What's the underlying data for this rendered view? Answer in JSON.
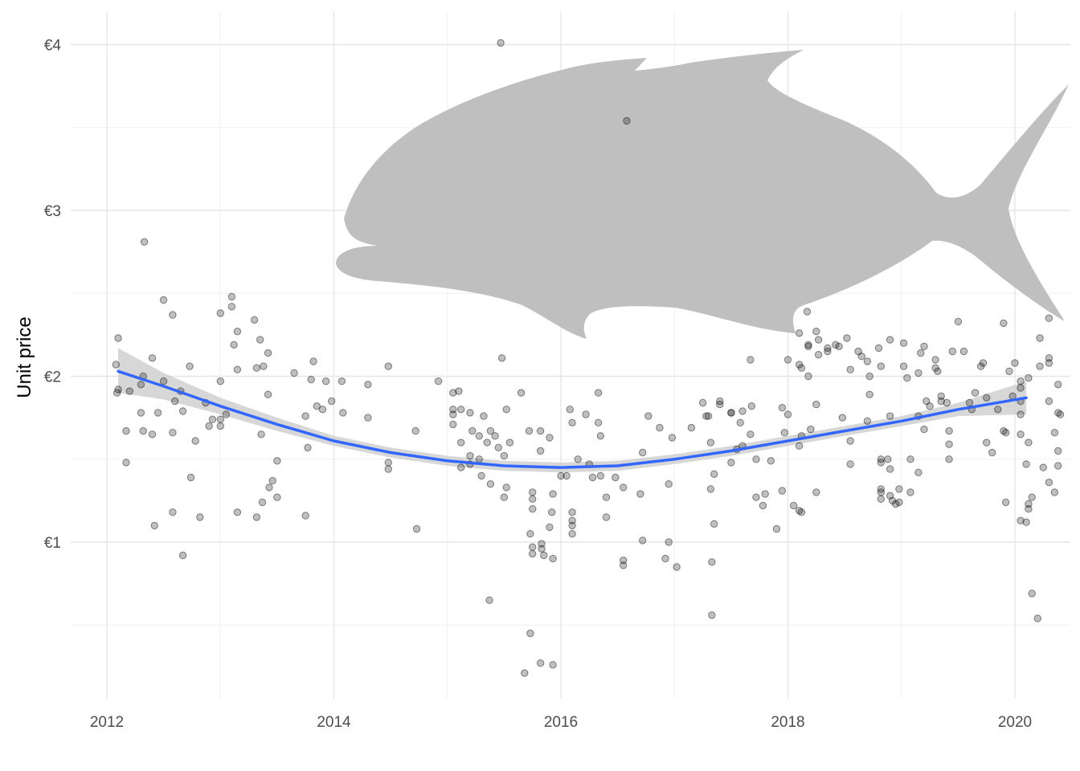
{
  "chart_data": {
    "type": "scatter",
    "ylabel": "Unit price",
    "y_tick_labels": [
      "€1",
      "€2",
      "€3",
      "€4"
    ],
    "y_ticks": [
      1,
      2,
      3,
      4
    ],
    "y_minor_ticks": [
      0.5,
      1.5,
      2.5,
      3.5
    ],
    "ylim": [
      0.0,
      4.2
    ],
    "x_tick_labels": [
      "2012",
      "2014",
      "2016",
      "2018",
      "2020"
    ],
    "x_ticks": [
      2012,
      2014,
      2016,
      2018,
      2020
    ],
    "x_minor_ticks": [
      2013,
      2015,
      2017,
      2019
    ],
    "xlim": [
      2011.7,
      2020.5
    ],
    "grid": true,
    "colors": {
      "points": "#000000",
      "smooth_line": "#3366ff",
      "confidence_band": "#d0d0d0",
      "fish_silhouette": "#bfbfbf",
      "grid": "#e6e6e6"
    },
    "silhouette": "fish",
    "smooth": {
      "x": [
        2012.1,
        2012.5,
        2013.0,
        2013.5,
        2014.0,
        2014.5,
        2015.0,
        2015.5,
        2016.0,
        2016.5,
        2017.0,
        2017.5,
        2018.0,
        2018.5,
        2019.0,
        2019.5,
        2020.1
      ],
      "y": [
        2.03,
        1.94,
        1.82,
        1.71,
        1.61,
        1.54,
        1.49,
        1.46,
        1.45,
        1.46,
        1.5,
        1.55,
        1.61,
        1.67,
        1.73,
        1.8,
        1.87
      ],
      "lower": [
        1.9,
        1.86,
        1.77,
        1.67,
        1.58,
        1.51,
        1.46,
        1.43,
        1.42,
        1.43,
        1.47,
        1.52,
        1.58,
        1.64,
        1.7,
        1.76,
        1.77
      ],
      "upper": [
        2.17,
        2.02,
        1.87,
        1.75,
        1.64,
        1.57,
        1.52,
        1.49,
        1.48,
        1.49,
        1.53,
        1.58,
        1.64,
        1.7,
        1.76,
        1.84,
        1.97
      ]
    },
    "points": [
      [
        2012.1,
        2.23
      ],
      [
        2012.08,
        2.07
      ],
      [
        2012.1,
        1.92
      ],
      [
        2012.09,
        1.9
      ],
      [
        2012.3,
        1.95
      ],
      [
        2012.33,
        2.81
      ],
      [
        2012.32,
        2.0
      ],
      [
        2012.4,
        2.11
      ],
      [
        2012.45,
        1.78
      ],
      [
        2012.5,
        1.97
      ],
      [
        2012.2,
        1.91
      ],
      [
        2012.3,
        1.78
      ],
      [
        2012.17,
        1.67
      ],
      [
        2012.32,
        1.67
      ],
      [
        2012.4,
        1.65
      ],
      [
        2012.17,
        1.48
      ],
      [
        2012.42,
        1.1
      ],
      [
        2012.5,
        2.46
      ],
      [
        2012.58,
        2.37
      ],
      [
        2012.65,
        1.91
      ],
      [
        2012.73,
        2.06
      ],
      [
        2012.6,
        1.85
      ],
      [
        2012.67,
        1.79
      ],
      [
        2012.58,
        1.66
      ],
      [
        2012.58,
        1.18
      ],
      [
        2012.67,
        0.92
      ],
      [
        2012.78,
        1.61
      ],
      [
        2012.87,
        1.84
      ],
      [
        2012.93,
        1.74
      ],
      [
        2012.9,
        1.7
      ],
      [
        2012.74,
        1.39
      ],
      [
        2012.82,
        1.15
      ],
      [
        2013.1,
        2.48
      ],
      [
        2013.1,
        2.42
      ],
      [
        2013.0,
        2.38
      ],
      [
        2013.15,
        2.27
      ],
      [
        2013.12,
        2.19
      ],
      [
        2013.15,
        2.04
      ],
      [
        2013.0,
        1.97
      ],
      [
        2013.05,
        1.77
      ],
      [
        2013.0,
        1.74
      ],
      [
        2013.0,
        1.7
      ],
      [
        2013.15,
        1.18
      ],
      [
        2013.3,
        2.34
      ],
      [
        2013.35,
        2.22
      ],
      [
        2013.42,
        2.14
      ],
      [
        2013.38,
        2.06
      ],
      [
        2013.32,
        2.05
      ],
      [
        2013.42,
        1.89
      ],
      [
        2013.36,
        1.65
      ],
      [
        2013.5,
        1.49
      ],
      [
        2013.46,
        1.37
      ],
      [
        2013.43,
        1.33
      ],
      [
        2013.5,
        1.27
      ],
      [
        2013.37,
        1.24
      ],
      [
        2013.32,
        1.15
      ],
      [
        2013.65,
        2.02
      ],
      [
        2013.75,
        1.76
      ],
      [
        2013.77,
        1.57
      ],
      [
        2013.75,
        1.16
      ],
      [
        2013.82,
        2.09
      ],
      [
        2013.8,
        1.98
      ],
      [
        2013.93,
        1.97
      ],
      [
        2013.85,
        1.82
      ],
      [
        2013.9,
        1.8
      ],
      [
        2013.98,
        1.85
      ],
      [
        2014.07,
        1.97
      ],
      [
        2014.08,
        1.78
      ],
      [
        2014.3,
        1.95
      ],
      [
        2014.3,
        1.75
      ],
      [
        2014.48,
        2.06
      ],
      [
        2014.48,
        1.48
      ],
      [
        2014.48,
        1.44
      ],
      [
        2014.72,
        1.67
      ],
      [
        2014.73,
        1.08
      ],
      [
        2014.92,
        1.97
      ],
      [
        2015.05,
        1.9
      ],
      [
        2015.05,
        1.8
      ],
      [
        2015.05,
        1.77
      ],
      [
        2015.05,
        1.71
      ],
      [
        2015.1,
        1.91
      ],
      [
        2015.12,
        1.8
      ],
      [
        2015.12,
        1.6
      ],
      [
        2015.12,
        1.45
      ],
      [
        2015.2,
        1.78
      ],
      [
        2015.22,
        1.67
      ],
      [
        2015.2,
        1.52
      ],
      [
        2015.2,
        1.47
      ],
      [
        2015.28,
        1.64
      ],
      [
        2015.28,
        1.5
      ],
      [
        2015.3,
        1.4
      ],
      [
        2015.32,
        1.76
      ],
      [
        2015.38,
        1.67
      ],
      [
        2015.35,
        1.6
      ],
      [
        2015.38,
        1.35
      ],
      [
        2015.37,
        0.65
      ],
      [
        2015.42,
        1.64
      ],
      [
        2015.45,
        1.57
      ],
      [
        2015.5,
        1.52
      ],
      [
        2015.52,
        1.8
      ],
      [
        2015.55,
        1.6
      ],
      [
        2015.52,
        1.33
      ],
      [
        2015.5,
        1.27
      ],
      [
        2015.48,
        2.11
      ],
      [
        2015.47,
        4.01
      ],
      [
        2015.65,
        1.9
      ],
      [
        2015.68,
        0.21
      ],
      [
        2015.72,
        1.67
      ],
      [
        2015.75,
        1.3
      ],
      [
        2015.75,
        1.26
      ],
      [
        2015.75,
        1.2
      ],
      [
        2015.73,
        1.05
      ],
      [
        2015.75,
        0.97
      ],
      [
        2015.75,
        0.93
      ],
      [
        2015.73,
        0.45
      ],
      [
        2015.82,
        1.67
      ],
      [
        2015.82,
        1.55
      ],
      [
        2015.83,
        0.99
      ],
      [
        2015.83,
        0.96
      ],
      [
        2015.85,
        0.92
      ],
      [
        2015.82,
        0.27
      ],
      [
        2015.9,
        1.63
      ],
      [
        2015.93,
        1.29
      ],
      [
        2015.92,
        1.18
      ],
      [
        2015.9,
        1.09
      ],
      [
        2015.93,
        0.9
      ],
      [
        2015.93,
        0.26
      ],
      [
        2016.0,
        1.4
      ],
      [
        2016.08,
        1.8
      ],
      [
        2016.1,
        1.72
      ],
      [
        2016.05,
        1.4
      ],
      [
        2016.1,
        1.18
      ],
      [
        2016.1,
        1.13
      ],
      [
        2016.1,
        1.1
      ],
      [
        2016.1,
        1.05
      ],
      [
        2016.15,
        1.5
      ],
      [
        2016.22,
        1.77
      ],
      [
        2016.25,
        1.47
      ],
      [
        2016.28,
        1.39
      ],
      [
        2016.33,
        1.72
      ],
      [
        2016.35,
        1.64
      ],
      [
        2016.33,
        1.9
      ],
      [
        2016.35,
        1.4
      ],
      [
        2016.4,
        1.27
      ],
      [
        2016.4,
        1.15
      ],
      [
        2016.48,
        1.39
      ],
      [
        2016.55,
        1.33
      ],
      [
        2016.55,
        0.86
      ],
      [
        2016.55,
        0.89
      ],
      [
        2016.72,
        1.54
      ],
      [
        2016.7,
        1.29
      ],
      [
        2016.72,
        1.01
      ],
      [
        2016.77,
        1.76
      ],
      [
        2016.87,
        1.69
      ],
      [
        2016.92,
        0.9
      ],
      [
        2016.98,
        1.63
      ],
      [
        2016.95,
        1.35
      ],
      [
        2016.95,
        1.0
      ],
      [
        2017.02,
        0.85
      ],
      [
        2017.15,
        1.69
      ],
      [
        2017.25,
        1.84
      ],
      [
        2017.28,
        1.76
      ],
      [
        2017.3,
        1.76
      ],
      [
        2017.32,
        1.6
      ],
      [
        2017.35,
        1.41
      ],
      [
        2017.32,
        1.32
      ],
      [
        2017.33,
        0.88
      ],
      [
        2017.4,
        1.85
      ],
      [
        2017.4,
        1.83
      ],
      [
        2017.35,
        1.11
      ],
      [
        2017.33,
        0.56
      ],
      [
        2017.5,
        1.78
      ],
      [
        2017.5,
        1.78
      ],
      [
        2017.58,
        1.72
      ],
      [
        2017.6,
        1.79
      ],
      [
        2017.6,
        1.58
      ],
      [
        2017.55,
        1.56
      ],
      [
        2017.5,
        1.48
      ],
      [
        2017.67,
        2.1
      ],
      [
        2017.67,
        1.65
      ],
      [
        2017.68,
        1.82
      ],
      [
        2017.72,
        1.5
      ],
      [
        2017.72,
        1.27
      ],
      [
        2017.78,
        1.22
      ],
      [
        2017.8,
        1.29
      ],
      [
        2017.85,
        1.49
      ],
      [
        2017.9,
        1.08
      ],
      [
        2017.95,
        1.81
      ],
      [
        2017.97,
        1.66
      ],
      [
        2017.95,
        1.31
      ],
      [
        2018.1,
        1.58
      ],
      [
        2018.05,
        1.22
      ],
      [
        2018.25,
        1.83
      ],
      [
        2018.25,
        1.3
      ],
      [
        2018.0,
        2.1
      ],
      [
        2018.0,
        1.77
      ],
      [
        2018.1,
        2.26
      ],
      [
        2018.1,
        2.07
      ],
      [
        2018.12,
        2.05
      ],
      [
        2018.12,
        1.64
      ],
      [
        2018.1,
        1.19
      ],
      [
        2018.12,
        1.18
      ],
      [
        2018.17,
        2.39
      ],
      [
        2018.18,
        2.19
      ],
      [
        2018.18,
        2.18
      ],
      [
        2018.18,
        2.0
      ],
      [
        2018.2,
        1.68
      ],
      [
        2018.25,
        2.27
      ],
      [
        2018.27,
        2.22
      ],
      [
        2018.27,
        2.13
      ],
      [
        2018.35,
        2.17
      ],
      [
        2018.35,
        2.15
      ],
      [
        2018.42,
        2.19
      ],
      [
        2018.45,
        2.18
      ],
      [
        2018.48,
        1.75
      ],
      [
        2018.52,
        2.23
      ],
      [
        2018.55,
        2.04
      ],
      [
        2018.55,
        1.61
      ],
      [
        2018.55,
        1.47
      ],
      [
        2018.62,
        2.15
      ],
      [
        2018.65,
        2.12
      ],
      [
        2018.7,
        2.09
      ],
      [
        2018.72,
        2.0
      ],
      [
        2018.72,
        1.89
      ],
      [
        2018.7,
        1.73
      ],
      [
        2018.8,
        2.17
      ],
      [
        2018.82,
        2.06
      ],
      [
        2018.82,
        1.5
      ],
      [
        2018.82,
        1.48
      ],
      [
        2018.82,
        1.32
      ],
      [
        2018.82,
        1.3
      ],
      [
        2018.82,
        1.26
      ],
      [
        2018.88,
        1.5
      ],
      [
        2018.9,
        2.22
      ],
      [
        2018.9,
        1.76
      ],
      [
        2018.9,
        1.44
      ],
      [
        2018.9,
        1.28
      ],
      [
        2018.92,
        1.25
      ],
      [
        2018.95,
        1.23
      ],
      [
        2018.98,
        1.32
      ],
      [
        2018.98,
        1.24
      ],
      [
        2019.02,
        2.06
      ],
      [
        2019.02,
        2.2
      ],
      [
        2019.05,
        1.99
      ],
      [
        2019.08,
        1.5
      ],
      [
        2019.08,
        1.3
      ],
      [
        2019.15,
        1.42
      ],
      [
        2019.17,
        2.14
      ],
      [
        2019.15,
        2.02
      ],
      [
        2019.15,
        1.76
      ],
      [
        2019.2,
        2.18
      ],
      [
        2019.2,
        1.68
      ],
      [
        2019.22,
        1.85
      ],
      [
        2019.25,
        1.82
      ],
      [
        2019.3,
        2.1
      ],
      [
        2019.3,
        2.05
      ],
      [
        2019.32,
        2.03
      ],
      [
        2019.35,
        1.88
      ],
      [
        2019.35,
        1.85
      ],
      [
        2019.4,
        1.84
      ],
      [
        2019.42,
        1.67
      ],
      [
        2019.42,
        1.59
      ],
      [
        2019.42,
        1.5
      ],
      [
        2019.45,
        2.15
      ],
      [
        2019.5,
        2.33
      ],
      [
        2019.55,
        2.15
      ],
      [
        2019.6,
        1.84
      ],
      [
        2019.62,
        1.8
      ],
      [
        2019.65,
        1.9
      ],
      [
        2019.7,
        2.06
      ],
      [
        2019.72,
        2.08
      ],
      [
        2019.75,
        1.87
      ],
      [
        2019.75,
        1.6
      ],
      [
        2019.8,
        1.54
      ],
      [
        2019.85,
        1.8
      ],
      [
        2019.9,
        2.32
      ],
      [
        2019.9,
        1.67
      ],
      [
        2019.92,
        1.66
      ],
      [
        2019.92,
        1.24
      ],
      [
        2019.95,
        2.03
      ],
      [
        2019.98,
        1.88
      ],
      [
        2020.0,
        2.08
      ],
      [
        2020.05,
        1.97
      ],
      [
        2020.05,
        1.93
      ],
      [
        2020.05,
        1.85
      ],
      [
        2020.05,
        1.77
      ],
      [
        2020.05,
        1.65
      ],
      [
        2020.05,
        1.13
      ],
      [
        2020.1,
        1.12
      ],
      [
        2020.1,
        1.47
      ],
      [
        2020.12,
        1.99
      ],
      [
        2020.12,
        1.6
      ],
      [
        2020.12,
        1.23
      ],
      [
        2020.12,
        1.2
      ],
      [
        2020.15,
        1.27
      ],
      [
        2020.15,
        0.69
      ],
      [
        2020.2,
        0.54
      ],
      [
        2020.22,
        2.23
      ],
      [
        2020.22,
        2.06
      ],
      [
        2020.25,
        1.45
      ],
      [
        2020.3,
        2.35
      ],
      [
        2020.3,
        2.11
      ],
      [
        2020.3,
        2.08
      ],
      [
        2020.3,
        1.85
      ],
      [
        2020.3,
        1.36
      ],
      [
        2020.35,
        1.66
      ],
      [
        2020.35,
        1.3
      ],
      [
        2020.38,
        1.95
      ],
      [
        2020.38,
        1.78
      ],
      [
        2020.38,
        1.55
      ],
      [
        2020.38,
        1.46
      ],
      [
        2020.4,
        1.77
      ]
    ],
    "highlight_point": [
      2016.58,
      3.54
    ]
  }
}
